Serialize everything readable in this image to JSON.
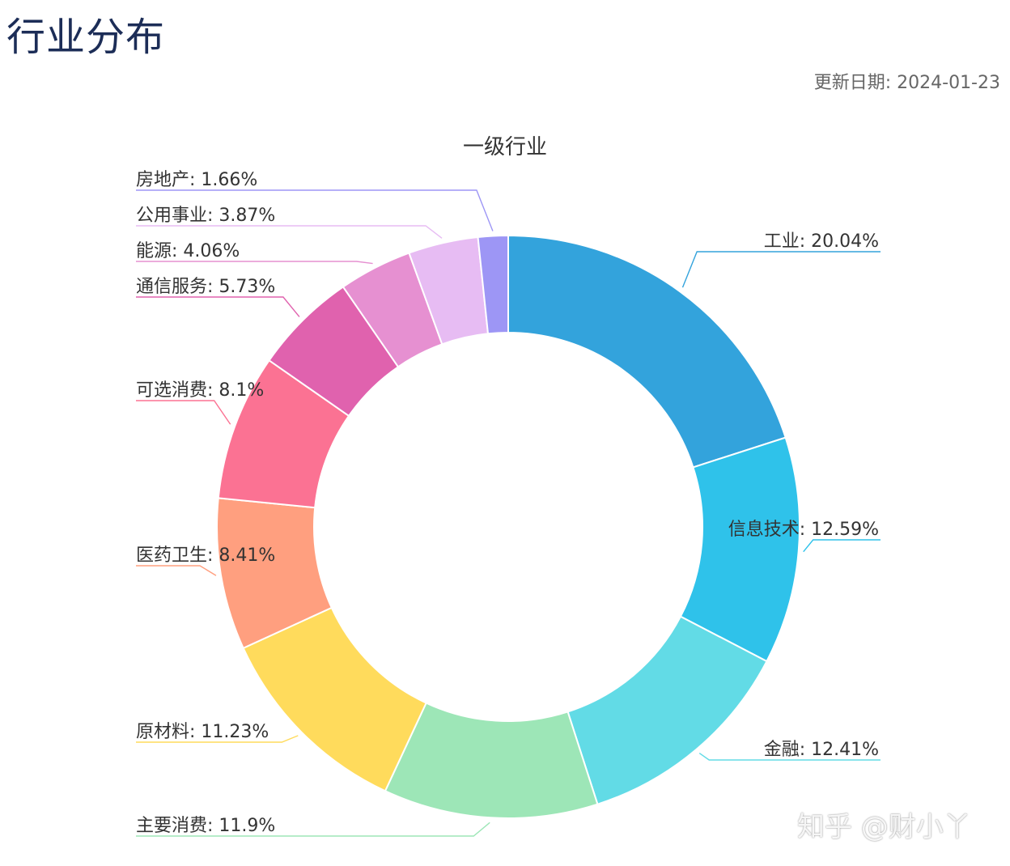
{
  "page": {
    "title": "行业分布",
    "update_label": "更新日期:",
    "update_date": "2024-01-23",
    "watermark": "知乎 @财小丫"
  },
  "chart_data": {
    "type": "pie",
    "donut": true,
    "title": "一级行业",
    "label_separator": ": ",
    "slices": [
      {
        "label": "工业",
        "value": 20.04,
        "display": "20.04%",
        "color": "#33a3dc",
        "side": "right"
      },
      {
        "label": "信息技术",
        "value": 12.59,
        "display": "12.59%",
        "color": "#2fc2ea",
        "side": "right"
      },
      {
        "label": "金融",
        "value": 12.41,
        "display": "12.41%",
        "color": "#62dbe6",
        "side": "right"
      },
      {
        "label": "主要消费",
        "value": 11.9,
        "display": "11.9%",
        "color": "#9de6b7",
        "side": "left"
      },
      {
        "label": "原材料",
        "value": 11.23,
        "display": "11.23%",
        "color": "#ffdb5c",
        "side": "left"
      },
      {
        "label": "医药卫生",
        "value": 8.41,
        "display": "8.41%",
        "color": "#ff9f7f",
        "side": "left"
      },
      {
        "label": "可选消费",
        "value": 8.1,
        "display": "8.1%",
        "color": "#fb7293",
        "side": "left"
      },
      {
        "label": "通信服务",
        "value": 5.73,
        "display": "5.73%",
        "color": "#e062ae",
        "side": "left"
      },
      {
        "label": "能源",
        "value": 4.06,
        "display": "4.06%",
        "color": "#e690d1",
        "side": "left"
      },
      {
        "label": "公用事业",
        "value": 3.87,
        "display": "3.87%",
        "color": "#e7bcf3",
        "side": "left"
      },
      {
        "label": "房地产",
        "value": 1.66,
        "display": "1.66%",
        "color": "#9d96f5",
        "side": "left"
      }
    ]
  }
}
